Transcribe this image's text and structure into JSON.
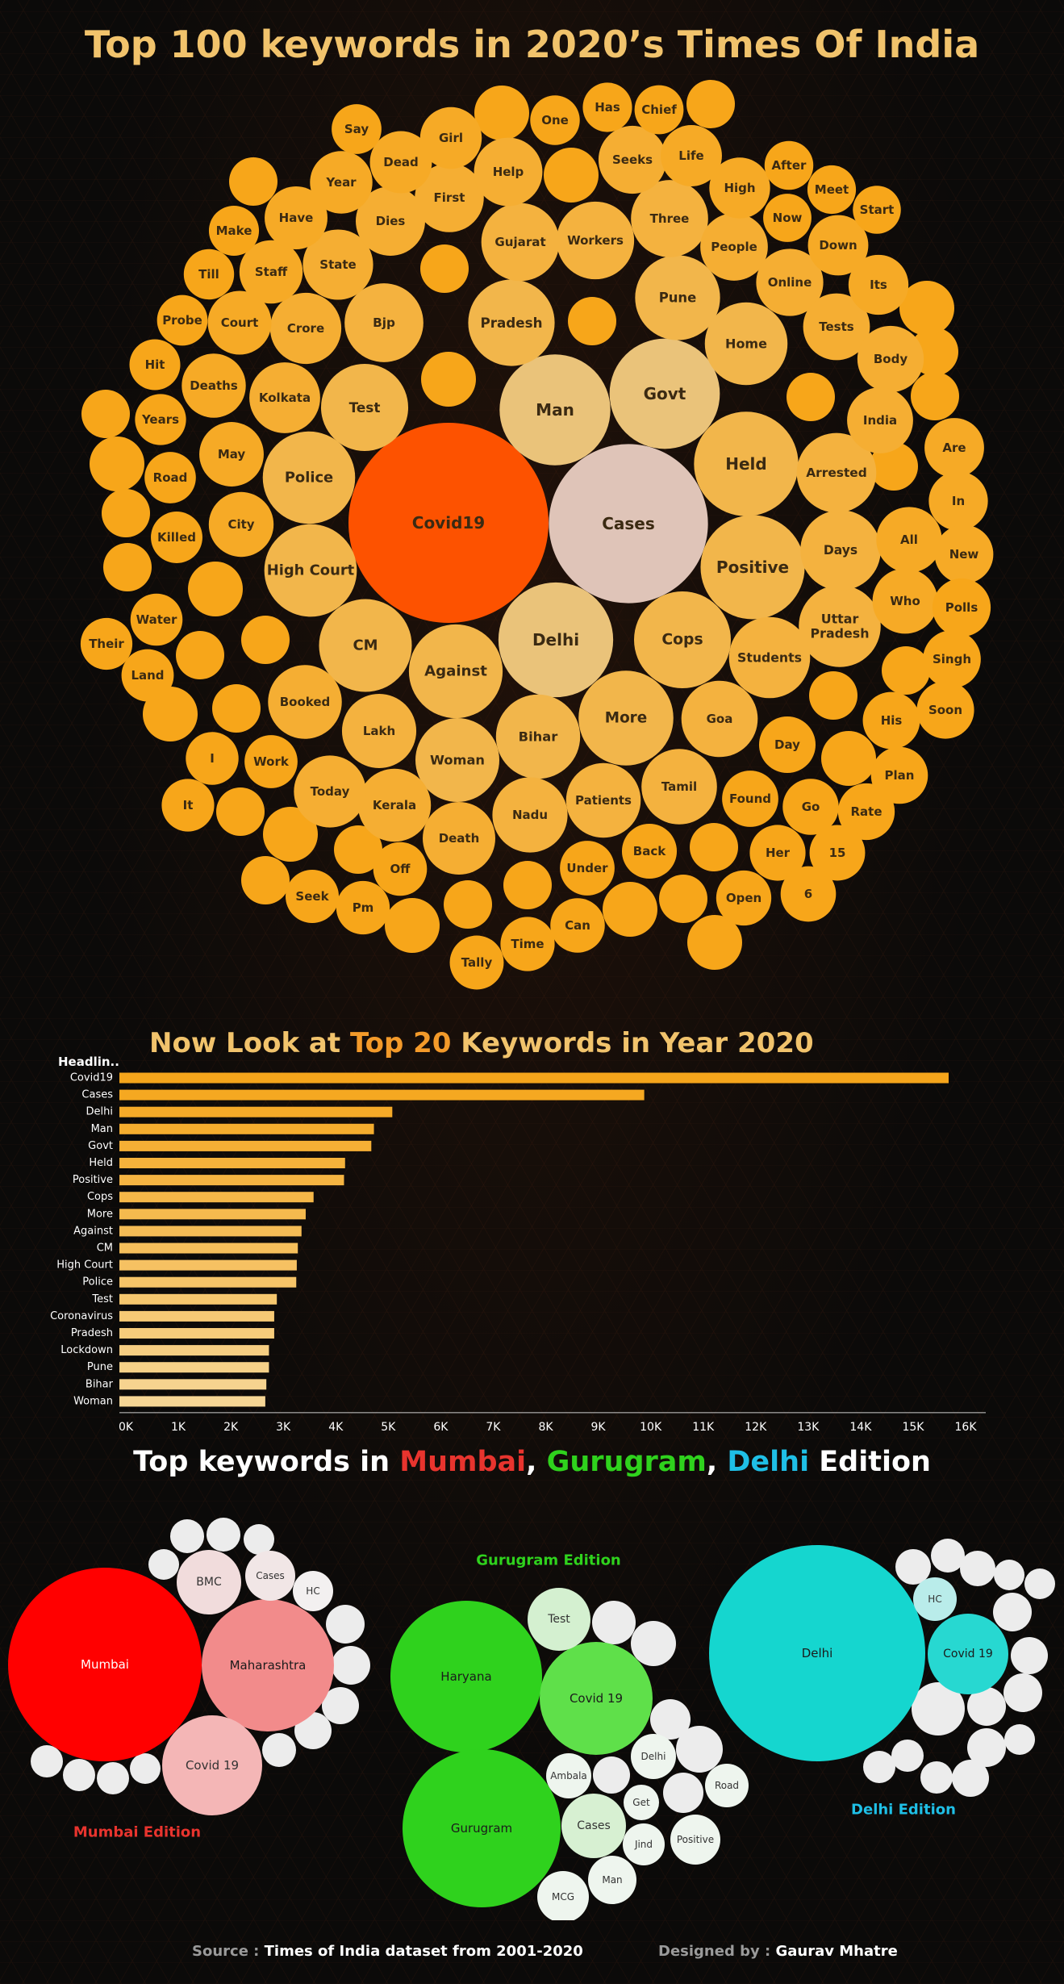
{
  "title": "Top 100 keywords in 2020’s Times Of India",
  "bar_title": {
    "part1": "Now Look at ",
    "accent": "Top 20",
    "part2": " Keywords in Year 2020"
  },
  "edition_title": {
    "part1": "Top keywords in ",
    "mumbai": "Mumbai",
    "sep1": ", ",
    "gurugram": "Gurugram",
    "sep2": ", ",
    "delhi": "Delhi",
    "part2": " Edition"
  },
  "colors": {
    "mumbai": "#e8342e",
    "gurugram": "#2fd21d",
    "delhi": "#1fbfe6",
    "bar": "#f5a51b",
    "covid": "#fd5200",
    "cases": "#dfc4b8"
  },
  "footer": {
    "source_label": "Source : ",
    "source_value": "Times of India dataset from 2001-2020",
    "designer_label": "Designed by : ",
    "designer_value": "Gaurav Mhatre"
  },
  "chart_data": [
    {
      "type": "bubble",
      "title": "Top 100 keywords in 2020’s Times Of India",
      "bubbles": [
        {
          "label": "Covid19",
          "value": 15800,
          "color": "#fd5200"
        },
        {
          "label": "Cases",
          "value": 10000,
          "color": "#dfc4b8"
        },
        {
          "label": "Delhi",
          "value": 5200,
          "color": "#eac37a"
        },
        {
          "label": "Man",
          "value": 4850,
          "color": "#eac37a"
        },
        {
          "label": "Govt",
          "value": 4800,
          "color": "#eac37a"
        },
        {
          "label": "Held",
          "value": 4300,
          "color": "#f2b64b"
        },
        {
          "label": "Positive",
          "value": 4280,
          "color": "#f2b64b"
        },
        {
          "label": "Cops",
          "value": 3700,
          "color": "#f2b64b"
        },
        {
          "label": "More",
          "value": 3550,
          "color": "#f2b64b"
        },
        {
          "label": "Against",
          "value": 3470,
          "color": "#f2b64b"
        },
        {
          "label": "CM",
          "value": 3400,
          "color": "#f2b64b"
        },
        {
          "label": "High Court",
          "value": 3380,
          "color": "#f2b64b"
        },
        {
          "label": "Police",
          "value": 3370,
          "color": "#f2b64b"
        },
        {
          "label": "Test",
          "value": 3000,
          "color": "#f2b64b"
        },
        {
          "label": "Pradesh",
          "value": 2950,
          "color": "#f2b64b"
        },
        {
          "label": "Pune",
          "value": 2850,
          "color": "#f2b64b"
        },
        {
          "label": "Bihar",
          "value": 2800,
          "color": "#f2b64b"
        },
        {
          "label": "Woman",
          "value": 2780,
          "color": "#f2b64b"
        },
        {
          "label": "Home",
          "value": 2700,
          "color": "#f2b64b"
        },
        {
          "label": "Uttar Pradesh",
          "value": 2650,
          "color": "#f4b23f"
        },
        {
          "label": "Students",
          "value": 2600,
          "color": "#f4b23f"
        },
        {
          "label": "Days",
          "value": 2550,
          "color": "#f4b23f"
        },
        {
          "label": "Arrested",
          "value": 2500,
          "color": "#f4b23f"
        },
        {
          "label": "Bjp",
          "value": 2450,
          "color": "#f4b23f"
        },
        {
          "label": "Gujarat",
          "value": 2400,
          "color": "#f4b23f"
        },
        {
          "label": "Workers",
          "value": 2380,
          "color": "#f4b23f"
        },
        {
          "label": "Three",
          "value": 2350,
          "color": "#f4b23f"
        },
        {
          "label": "Goa",
          "value": 2300,
          "color": "#f4b23f"
        },
        {
          "label": "Tamil",
          "value": 2250,
          "color": "#f4b23f"
        },
        {
          "label": "Nadu",
          "value": 2230,
          "color": "#f4b23f"
        },
        {
          "label": "Patients",
          "value": 2200,
          "color": "#f4b23f"
        },
        {
          "label": "Lakh",
          "value": 2180,
          "color": "#f4b23f"
        },
        {
          "label": "Booked",
          "value": 2150,
          "color": "#f5ae33"
        },
        {
          "label": "Kerala",
          "value": 2100,
          "color": "#f5ae33"
        },
        {
          "label": "Death",
          "value": 2080,
          "color": "#f5ae33"
        },
        {
          "label": "Today",
          "value": 2050,
          "color": "#f5ae33"
        },
        {
          "label": "Crore",
          "value": 2000,
          "color": "#f5ae33"
        },
        {
          "label": "Kolkata",
          "value": 1980,
          "color": "#f5ae33"
        },
        {
          "label": "State",
          "value": 1950,
          "color": "#f5ae33"
        },
        {
          "label": "Dies",
          "value": 1900,
          "color": "#f5ae33"
        },
        {
          "label": "First",
          "value": 1880,
          "color": "#f5ae33"
        },
        {
          "label": "Help",
          "value": 1850,
          "color": "#f5ae33"
        },
        {
          "label": "Seeks",
          "value": 1820,
          "color": "#f5ae33"
        },
        {
          "label": "People",
          "value": 1800,
          "color": "#f5ae33"
        },
        {
          "label": "Online",
          "value": 1780,
          "color": "#f5ae33"
        },
        {
          "label": "Tests",
          "value": 1760,
          "color": "#f5ae33"
        },
        {
          "label": "Body",
          "value": 1740,
          "color": "#f5ae33"
        },
        {
          "label": "India",
          "value": 1720,
          "color": "#f5ae33"
        },
        {
          "label": "All",
          "value": 1700,
          "color": "#f6aa26"
        },
        {
          "label": "Who",
          "value": 1680,
          "color": "#f6aa26"
        },
        {
          "label": "City",
          "value": 1660,
          "color": "#f6aa26"
        },
        {
          "label": "May",
          "value": 1640,
          "color": "#f6aa26"
        },
        {
          "label": "Deaths",
          "value": 1620,
          "color": "#f6aa26"
        },
        {
          "label": "Court",
          "value": 1600,
          "color": "#f6aa26"
        },
        {
          "label": "Staff",
          "value": 1580,
          "color": "#f6aa26"
        },
        {
          "label": "Have",
          "value": 1560,
          "color": "#f6aa26"
        },
        {
          "label": "Year",
          "value": 1540,
          "color": "#f6aa26"
        },
        {
          "label": "Dead",
          "value": 1520,
          "color": "#f6aa26"
        },
        {
          "label": "Girl",
          "value": 1500,
          "color": "#f6aa26"
        },
        {
          "label": "Life",
          "value": 1480,
          "color": "#f6aa26"
        },
        {
          "label": "High",
          "value": 1460,
          "color": "#f6aa26"
        },
        {
          "label": "Down",
          "value": 1440,
          "color": "#f6aa26"
        },
        {
          "label": "Its",
          "value": 1420,
          "color": "#f6aa26"
        },
        {
          "label": "Are",
          "value": 1400,
          "color": "#f6aa26"
        },
        {
          "label": "In",
          "value": 1380,
          "color": "#f6aa26"
        },
        {
          "label": "New",
          "value": 1360,
          "color": "#f6aa26"
        },
        {
          "label": "Polls",
          "value": 1340,
          "color": "#f7a61a"
        },
        {
          "label": "Singh",
          "value": 1320,
          "color": "#f7a61a"
        },
        {
          "label": "Soon",
          "value": 1300,
          "color": "#f7a61a"
        },
        {
          "label": "His",
          "value": 1290,
          "color": "#f7a61a"
        },
        {
          "label": "Plan",
          "value": 1280,
          "color": "#f7a61a"
        },
        {
          "label": "Rate",
          "value": 1270,
          "color": "#f7a61a"
        },
        {
          "label": "Day",
          "value": 1260,
          "color": "#f7a61a"
        },
        {
          "label": "Found",
          "value": 1250,
          "color": "#f7a61a"
        },
        {
          "label": "Go",
          "value": 1240,
          "color": "#f7a61a"
        },
        {
          "label": "Her",
          "value": 1230,
          "color": "#f7a61a"
        },
        {
          "label": "15",
          "value": 1220,
          "color": "#f7a61a"
        },
        {
          "label": "6",
          "value": 1210,
          "color": "#f7a61a"
        },
        {
          "label": "Open",
          "value": 1200,
          "color": "#f7a61a"
        },
        {
          "label": "Back",
          "value": 1190,
          "color": "#f7a61a"
        },
        {
          "label": "Under",
          "value": 1180,
          "color": "#f7a61a"
        },
        {
          "label": "Can",
          "value": 1170,
          "color": "#f7a61a"
        },
        {
          "label": "Time",
          "value": 1160,
          "color": "#f7a61a"
        },
        {
          "label": "Tally",
          "value": 1150,
          "color": "#f7a61a"
        },
        {
          "label": "Off",
          "value": 1140,
          "color": "#f7a61a"
        },
        {
          "label": "Pm",
          "value": 1130,
          "color": "#f7a61a"
        },
        {
          "label": "Seek",
          "value": 1120,
          "color": "#f7a61a"
        },
        {
          "label": "Work",
          "value": 1110,
          "color": "#f7a61a"
        },
        {
          "label": "I",
          "value": 1100,
          "color": "#f7a61a"
        },
        {
          "label": "It",
          "value": 1090,
          "color": "#f7a61a"
        },
        {
          "label": "Land",
          "value": 1080,
          "color": "#f7a61a"
        },
        {
          "label": "Water",
          "value": 1070,
          "color": "#f7a61a"
        },
        {
          "label": "Their",
          "value": 1060,
          "color": "#f7a61a"
        },
        {
          "label": "Killed",
          "value": 1050,
          "color": "#f7a61a"
        },
        {
          "label": "Road",
          "value": 1040,
          "color": "#f7a61a"
        },
        {
          "label": "Years",
          "value": 1030,
          "color": "#f7a61a"
        },
        {
          "label": "Hit",
          "value": 1020,
          "color": "#f7a61a"
        },
        {
          "label": "Probe",
          "value": 1010,
          "color": "#f7a61a"
        },
        {
          "label": "Till",
          "value": 1000,
          "color": "#f7a61a"
        },
        {
          "label": "Make",
          "value": 990,
          "color": "#f7a61a"
        },
        {
          "label": "Say",
          "value": 980,
          "color": "#f7a61a"
        },
        {
          "label": "One",
          "value": 970,
          "color": "#f7a61a"
        },
        {
          "label": "Has",
          "value": 960,
          "color": "#f7a61a"
        },
        {
          "label": "Chief",
          "value": 950,
          "color": "#f7a61a"
        },
        {
          "label": "After",
          "value": 940,
          "color": "#f7a61a"
        },
        {
          "label": "Meet",
          "value": 930,
          "color": "#f7a61a"
        },
        {
          "label": "Now",
          "value": 920,
          "color": "#f7a61a"
        },
        {
          "label": "Start",
          "value": 910,
          "color": "#f7a61a"
        }
      ]
    },
    {
      "type": "bar",
      "title": "Now Look at Top 20 Keywords in Year 2020",
      "ylabel": "Headlin..",
      "categories": [
        "Covid19",
        "Cases",
        "Delhi",
        "Man",
        "Govt",
        "Held",
        "Positive",
        "Cops",
        "More",
        "Against",
        "CM",
        "High Court",
        "Police",
        "Test",
        "Coronavirus",
        "Pradesh",
        "Lockdown",
        "Pune",
        "Bihar",
        "Woman"
      ],
      "values": [
        15800,
        10000,
        5200,
        4850,
        4800,
        4300,
        4280,
        3700,
        3550,
        3470,
        3400,
        3380,
        3370,
        3000,
        2950,
        2950,
        2850,
        2850,
        2800,
        2780
      ],
      "ticks": [
        "0K",
        "1K",
        "2K",
        "3K",
        "4K",
        "5K",
        "6K",
        "7K",
        "8K",
        "9K",
        "10K",
        "11K",
        "12K",
        "13K",
        "14K",
        "15K",
        "16K"
      ],
      "xlim": [
        0,
        16000
      ],
      "grid": false
    },
    {
      "type": "bubble",
      "title": "Mumbai Edition",
      "caption": "Mumbai Edition",
      "bubbles": [
        {
          "label": "Mumbai",
          "value": 100,
          "color": "#ff0000"
        },
        {
          "label": "Maharashtra",
          "value": 46,
          "color": "#f28b8b"
        },
        {
          "label": "Covid 19",
          "value": 28,
          "color": "#f4b6b6"
        },
        {
          "label": "BMC",
          "value": 8,
          "color": "#f1dcdc"
        },
        {
          "label": "Cases",
          "value": 6,
          "color": "#f1e6e6"
        },
        {
          "label": "HC",
          "value": 4,
          "color": "#f3f0f0"
        }
      ]
    },
    {
      "type": "bubble",
      "title": "Gurugram Edition",
      "caption": "Gurugram Edition",
      "bubbles": [
        {
          "label": "Haryana",
          "value": 100,
          "color": "#2fd21d"
        },
        {
          "label": "Gurugram",
          "value": 100,
          "color": "#2fd21d"
        },
        {
          "label": "Covid 19",
          "value": 52,
          "color": "#5fe04a"
        },
        {
          "label": "Test",
          "value": 15,
          "color": "#d4f0d0"
        },
        {
          "label": "Cases",
          "value": 14,
          "color": "#d7f0d2"
        },
        {
          "label": "Delhi",
          "value": 8,
          "color": "#eef5ee"
        },
        {
          "label": "Ambala",
          "value": 8,
          "color": "#eef5ee"
        },
        {
          "label": "Get",
          "value": 6,
          "color": "#eef5ee"
        },
        {
          "label": "Road",
          "value": 6,
          "color": "#eef5ee"
        },
        {
          "label": "Jind",
          "value": 6,
          "color": "#eef5ee"
        },
        {
          "label": "Positive",
          "value": 6,
          "color": "#eef5ee"
        },
        {
          "label": "Man",
          "value": 6,
          "color": "#eef5ee"
        },
        {
          "label": "MCG",
          "value": 6,
          "color": "#eef5ee"
        }
      ]
    },
    {
      "type": "bubble",
      "title": "Delhi Edition",
      "caption": "Delhi Edition",
      "bubbles": [
        {
          "label": "Delhi",
          "value": 100,
          "color": "#15d6cf"
        },
        {
          "label": "Covid 19",
          "value": 14,
          "color": "#27d8d1"
        },
        {
          "label": "HC",
          "value": 4,
          "color": "#b9ecea"
        }
      ]
    }
  ]
}
